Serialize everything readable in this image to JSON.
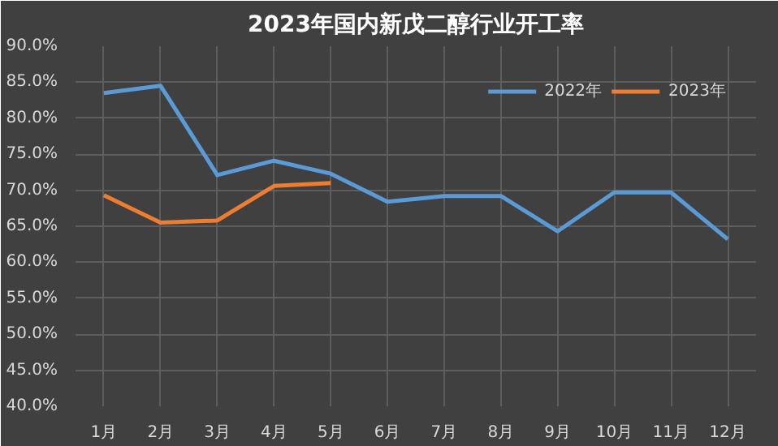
{
  "chart_data": {
    "type": "line",
    "title": "2023年国内新戊二醇行业开工率",
    "categories": [
      "1月",
      "2月",
      "3月",
      "4月",
      "5月",
      "6月",
      "7月",
      "8月",
      "9月",
      "10月",
      "11月",
      "12月"
    ],
    "series": [
      {
        "name": "2022年",
        "color": "#5b9bd5",
        "values": [
          83.5,
          84.5,
          72.1,
          74.1,
          72.3,
          68.4,
          69.2,
          69.2,
          64.3,
          69.7,
          69.7,
          63.2
        ]
      },
      {
        "name": "2023年",
        "color": "#ed7d31",
        "values": [
          69.3,
          65.5,
          65.8,
          70.6,
          71.0,
          null,
          null,
          null,
          null,
          null,
          null,
          null
        ]
      }
    ],
    "ylim": [
      40,
      90
    ],
    "yticks": [
      {
        "value": 40,
        "label": "40.0%"
      },
      {
        "value": 45,
        "label": "45.0%"
      },
      {
        "value": 50,
        "label": "50.0%"
      },
      {
        "value": 55,
        "label": "55.0%"
      },
      {
        "value": 60,
        "label": "60.0%"
      },
      {
        "value": 65,
        "label": "65.0%"
      },
      {
        "value": 70,
        "label": "70.0%"
      },
      {
        "value": 75,
        "label": "75.0%"
      },
      {
        "value": 80,
        "label": "80.0%"
      },
      {
        "value": 85,
        "label": "85.0%"
      },
      {
        "value": 90,
        "label": "90.0%"
      }
    ],
    "grid": true,
    "legend": "top right",
    "marker": "none",
    "line_style": "solid"
  }
}
